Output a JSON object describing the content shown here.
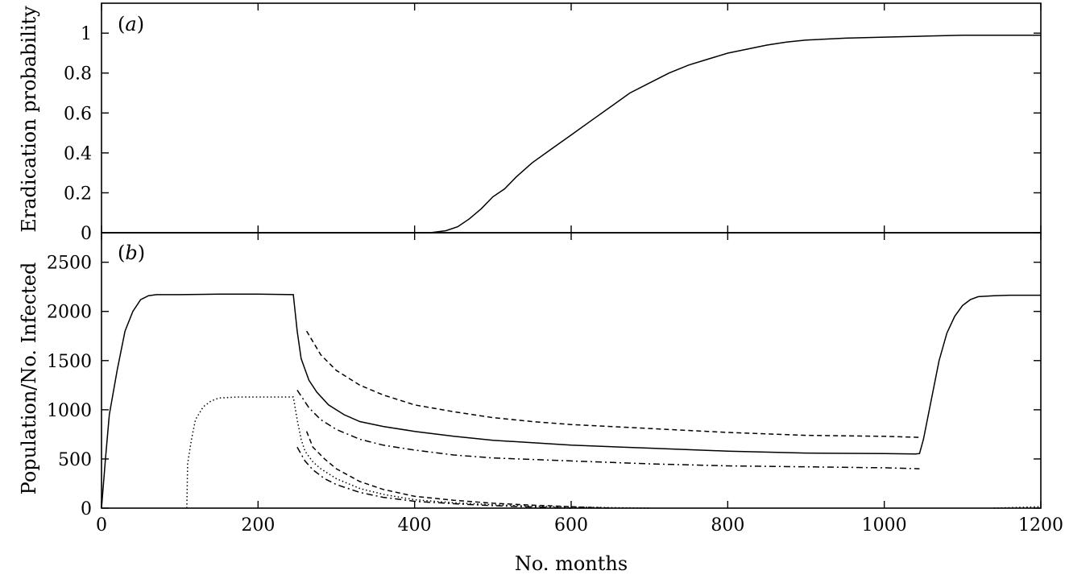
{
  "chart_data": [
    {
      "id": "a",
      "type": "line",
      "panel_label_open": "(",
      "panel_label_letter": "a",
      "panel_label_close": ")",
      "xlabel": "",
      "ylabel": "Eradication probability",
      "xlim": [
        0,
        1200
      ],
      "ylim": [
        0,
        1.15
      ],
      "xticks": [
        0,
        200,
        400,
        600,
        800,
        1000,
        1200
      ],
      "yticks": [
        0,
        0.2,
        0.4,
        0.6,
        0.8,
        1
      ],
      "ytick_labels": [
        "0",
        "0.2",
        "0.4",
        "0.6",
        "0.8",
        "1"
      ],
      "grid": false,
      "series": [
        {
          "style": "solid",
          "x": [
            0,
            420,
            440,
            455,
            470,
            485,
            500,
            515,
            530,
            550,
            575,
            600,
            625,
            650,
            675,
            700,
            725,
            750,
            775,
            800,
            825,
            850,
            875,
            900,
            950,
            1000,
            1050,
            1100,
            1150,
            1200
          ],
          "y": [
            0,
            0,
            0.01,
            0.03,
            0.07,
            0.12,
            0.18,
            0.22,
            0.28,
            0.35,
            0.42,
            0.49,
            0.56,
            0.63,
            0.7,
            0.75,
            0.8,
            0.84,
            0.87,
            0.9,
            0.92,
            0.94,
            0.955,
            0.965,
            0.975,
            0.98,
            0.985,
            0.99,
            0.99,
            0.99
          ]
        }
      ]
    },
    {
      "id": "b",
      "type": "line",
      "panel_label_open": "(",
      "panel_label_letter": "b",
      "panel_label_close": ")",
      "xlabel": "No. months",
      "ylabel": "Population/No. Infected",
      "xlim": [
        0,
        1200
      ],
      "ylim": [
        0,
        2800
      ],
      "xticks": [
        0,
        200,
        400,
        600,
        800,
        1000,
        1200
      ],
      "xtick_labels": [
        "0",
        "200",
        "400",
        "600",
        "800",
        "1000",
        "1200"
      ],
      "yticks": [
        0,
        500,
        1000,
        1500,
        2000,
        2500
      ],
      "ytick_labels": [
        "0",
        "500",
        "1000",
        "1500",
        "2000",
        "2500"
      ],
      "grid": false,
      "series": [
        {
          "style": "solid",
          "x": [
            0,
            5,
            10,
            20,
            30,
            40,
            50,
            60,
            70,
            100,
            150,
            200,
            245,
            250,
            255,
            265,
            275,
            290,
            310,
            330,
            360,
            400,
            450,
            500,
            600,
            700,
            800,
            900,
            1000,
            1040,
            1045,
            1050,
            1060,
            1070,
            1080,
            1090,
            1100,
            1110,
            1120,
            1140,
            1160,
            1200
          ],
          "y": [
            0,
            500,
            950,
            1400,
            1800,
            2000,
            2120,
            2160,
            2170,
            2170,
            2175,
            2175,
            2170,
            1800,
            1520,
            1300,
            1180,
            1050,
            950,
            880,
            830,
            780,
            730,
            690,
            640,
            610,
            580,
            560,
            555,
            550,
            555,
            700,
            1100,
            1500,
            1780,
            1950,
            2060,
            2120,
            2150,
            2160,
            2165,
            2165
          ]
        },
        {
          "style": "dotted",
          "x": [
            109,
            110,
            115,
            120,
            130,
            140,
            150,
            175,
            200,
            245,
            250,
            255,
            260,
            270,
            280,
            300,
            330,
            360,
            400,
            450,
            500,
            550,
            600,
            650,
            700
          ],
          "y": [
            0,
            450,
            700,
            900,
            1030,
            1090,
            1120,
            1130,
            1130,
            1130,
            900,
            700,
            580,
            470,
            400,
            300,
            200,
            140,
            85,
            55,
            35,
            20,
            12,
            6,
            0
          ]
        },
        {
          "style": "dashed",
          "x": [
            262,
            280,
            300,
            330,
            360,
            400,
            450,
            500,
            550,
            600,
            700,
            800,
            900,
            1000,
            1045
          ],
          "y": [
            1800,
            1560,
            1400,
            1250,
            1150,
            1050,
            980,
            920,
            880,
            850,
            810,
            770,
            740,
            730,
            720
          ]
        },
        {
          "style": "dashdot",
          "x": [
            250,
            265,
            280,
            300,
            330,
            360,
            400,
            450,
            500,
            600,
            700,
            800,
            900,
            1000,
            1045
          ],
          "y": [
            1200,
            1020,
            900,
            800,
            700,
            640,
            590,
            540,
            510,
            480,
            450,
            430,
            420,
            410,
            400
          ]
        },
        {
          "style": "dashed",
          "x": [
            262,
            270,
            285,
            300,
            330,
            360,
            400,
            450,
            500,
            550,
            600,
            650
          ],
          "y": [
            780,
            620,
            500,
            400,
            270,
            190,
            120,
            80,
            50,
            30,
            15,
            0
          ]
        },
        {
          "style": "dashdot",
          "x": [
            250,
            260,
            270,
            285,
            300,
            330,
            360,
            400,
            450,
            500,
            550,
            600
          ],
          "y": [
            620,
            480,
            390,
            300,
            240,
            160,
            110,
            70,
            45,
            25,
            12,
            0
          ]
        },
        {
          "style": "dotted",
          "x": [
            1140,
            1160,
            1180,
            1200
          ],
          "y": [
            0,
            5,
            10,
            15
          ]
        }
      ]
    }
  ]
}
